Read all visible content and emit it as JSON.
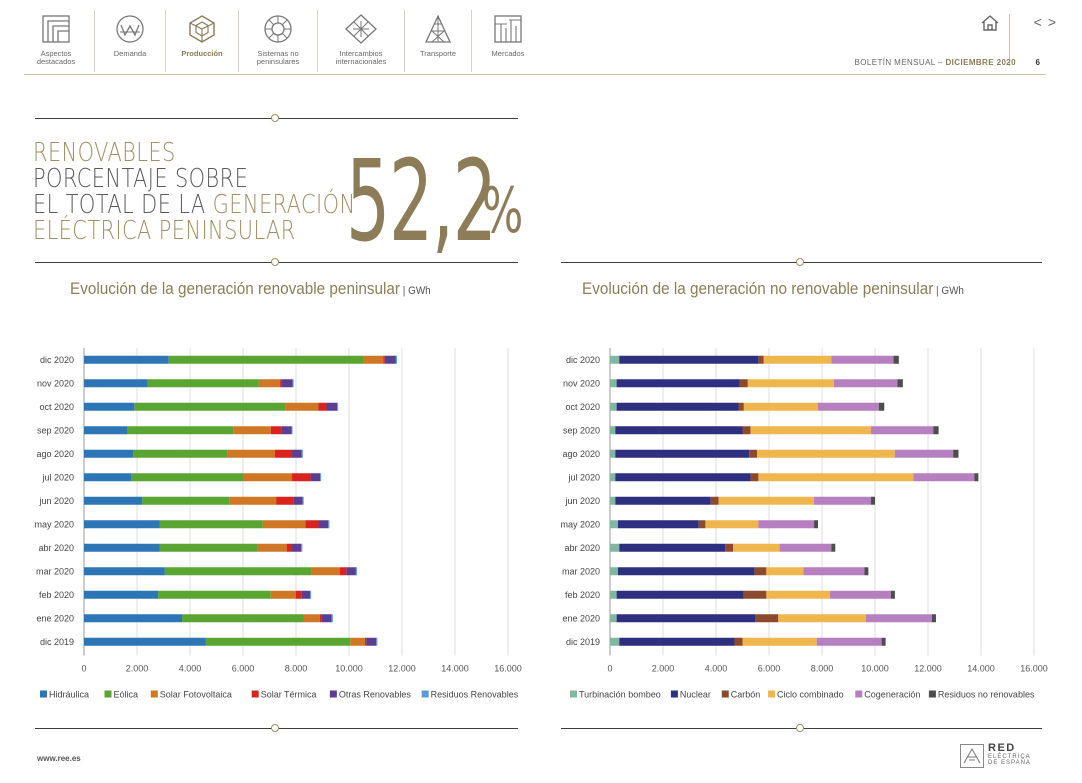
{
  "nav": {
    "items": [
      {
        "label": "Aspectos\ndestacados",
        "icon": "highlights-icon",
        "active": false
      },
      {
        "label": "Demanda",
        "icon": "demand-icon",
        "active": false
      },
      {
        "label": "Producción",
        "icon": "production-icon",
        "active": true
      },
      {
        "label": "Sistemas no\npeninsulares",
        "icon": "non-peninsular-icon",
        "active": false
      },
      {
        "label": "Intercambios\ninternacionales",
        "icon": "international-exchange-icon",
        "active": false
      },
      {
        "label": "Transporte",
        "icon": "transport-tower-icon",
        "active": false
      },
      {
        "label": "Mercados",
        "icon": "markets-icon",
        "active": false
      }
    ]
  },
  "header": {
    "bulletin_label": "BOLETÍN MENSUAL",
    "bulletin_sep": "–",
    "bulletin_period": "DICIEMBRE 2020",
    "page_number": "6",
    "prev_symbol": "<",
    "next_symbol": ">"
  },
  "kpi": {
    "line1": "RENOVABLES",
    "line2": "PORCENTAJE SOBRE",
    "line3_a": "EL TOTAL DE LA ",
    "line3_b": "GENERACIÓN",
    "line4": "ELÉCTRICA PENINSULAR",
    "value": "52,2",
    "unit": "%"
  },
  "footer": {
    "url": "www.ree.es",
    "logo_name": "RED",
    "logo_sub1": "ELÉCTRICA",
    "logo_sub2": "DE ESPAÑA"
  },
  "colors": {
    "accent": "#8c7d58",
    "gold_line": "#9c8d66"
  },
  "chart_data": [
    {
      "type": "bar",
      "orientation": "horizontal",
      "stacked": true,
      "title": "Evolución de la generación renovable peninsular",
      "unit": "GWh",
      "categories": [
        "dic 2020",
        "nov 2020",
        "oct 2020",
        "sep 2020",
        "ago 2020",
        "jul 2020",
        "jun 2020",
        "may 2020",
        "abr 2020",
        "mar 2020",
        "feb 2020",
        "ene 2020",
        "dic 2019"
      ],
      "xlim": [
        0,
        16000
      ],
      "xticks": [
        "0",
        "2.000",
        "4.000",
        "6.000",
        "8.000",
        "10.000",
        "12.000",
        "14.000",
        "16.000"
      ],
      "grid": true,
      "legend_position": "bottom",
      "series": [
        {
          "name": "Hidráulica",
          "color": "#2e75b6",
          "values": [
            3200,
            2400,
            1900,
            1650,
            1850,
            1800,
            2200,
            2850,
            2850,
            3050,
            2800,
            3700,
            4600
          ]
        },
        {
          "name": "Eólica",
          "color": "#5aa532",
          "values": [
            7350,
            4200,
            5700,
            4000,
            3550,
            4200,
            3300,
            3900,
            3700,
            5550,
            4250,
            4600,
            5450
          ]
        },
        {
          "name": "Solar Fotovoltaica",
          "color": "#cf7725",
          "values": [
            750,
            800,
            1250,
            1400,
            1800,
            1850,
            1750,
            1600,
            1100,
            1050,
            950,
            600,
            550
          ]
        },
        {
          "name": "Solar Térmica",
          "color": "#d9241e",
          "values": [
            50,
            50,
            300,
            400,
            650,
            700,
            650,
            500,
            200,
            250,
            200,
            50,
            50
          ]
        },
        {
          "name": "Otras Renovables",
          "color": "#5b3e8f",
          "values": [
            420,
            420,
            400,
            380,
            370,
            360,
            350,
            370,
            350,
            360,
            330,
            400,
            380
          ]
        },
        {
          "name": "Residuos Renovables",
          "color": "#5b9bd5",
          "values": [
            40,
            40,
            40,
            40,
            40,
            40,
            40,
            40,
            40,
            40,
            40,
            40,
            40
          ]
        }
      ]
    },
    {
      "type": "bar",
      "orientation": "horizontal",
      "stacked": true,
      "title": "Evolución de la generación no renovable peninsular",
      "unit": "GWh",
      "categories": [
        "dic 2020",
        "nov 2020",
        "oct 2020",
        "sep 2020",
        "ago 2020",
        "jul 2020",
        "jun 2020",
        "may 2020",
        "abr 2020",
        "mar 2020",
        "feb 2020",
        "ene 2020",
        "dic 2019"
      ],
      "xlim": [
        0,
        16000
      ],
      "xticks": [
        "0",
        "2.000",
        "4.000",
        "6.000",
        "8.000",
        "10.000",
        "12.000",
        "14.000",
        "16.000"
      ],
      "grid": true,
      "legend_position": "bottom",
      "series": [
        {
          "name": "Turbinación bombeo",
          "color": "#7fb89e",
          "values": [
            350,
            250,
            250,
            200,
            200,
            200,
            200,
            300,
            350,
            300,
            250,
            250,
            350
          ]
        },
        {
          "name": "Nuclear",
          "color": "#2e2f7f",
          "values": [
            5250,
            4650,
            4600,
            4800,
            5050,
            5100,
            3600,
            3050,
            4000,
            5150,
            4800,
            5250,
            4350
          ]
        },
        {
          "name": "Carbón",
          "color": "#8b4a2b",
          "values": [
            200,
            300,
            200,
            300,
            300,
            300,
            300,
            250,
            300,
            450,
            850,
            850,
            300
          ]
        },
        {
          "name": "Ciclo combinado",
          "color": "#eeb64d",
          "values": [
            2550,
            3250,
            2800,
            4550,
            5200,
            5850,
            3600,
            2000,
            1750,
            1400,
            2400,
            3300,
            2800
          ]
        },
        {
          "name": "Cogeneración",
          "color": "#b57fc0",
          "values": [
            2350,
            2400,
            2300,
            2350,
            2200,
            2300,
            2150,
            2100,
            1950,
            2300,
            2300,
            2500,
            2450
          ]
        },
        {
          "name": "Residuos no renovables",
          "color": "#4d4d4d",
          "values": [
            200,
            200,
            200,
            200,
            200,
            150,
            150,
            150,
            150,
            150,
            150,
            150,
            150
          ]
        }
      ]
    }
  ]
}
